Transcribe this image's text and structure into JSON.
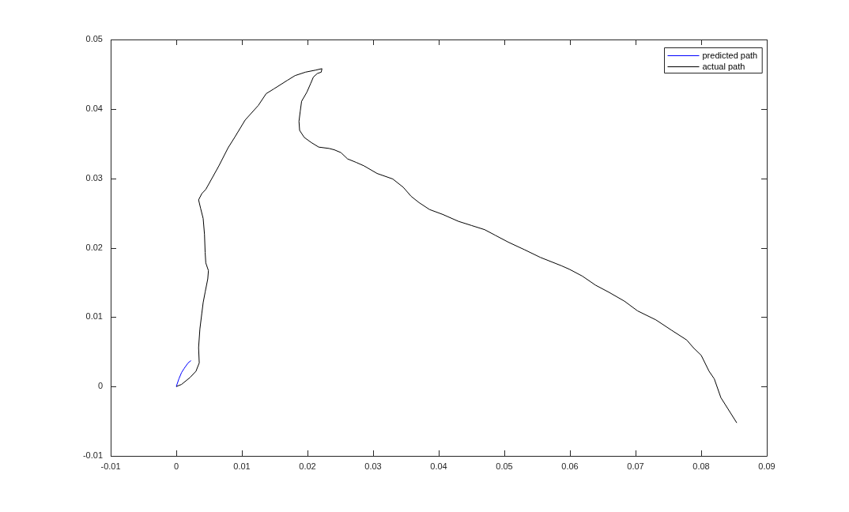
{
  "chart_data": {
    "type": "line",
    "series": [
      {
        "name": "predicted path",
        "color": "#0000ff",
        "x": [
          0,
          0.0004,
          0.0008,
          0.0012,
          0.0018,
          0.0022
        ],
        "values": [
          0,
          0.0011,
          0.002,
          0.0026,
          0.0034,
          0.0037
        ]
      },
      {
        "name": "actual path",
        "color": "#000000",
        "x": [
          0,
          0.0008,
          0.0021,
          0.003,
          0.0035,
          0.0034,
          0.0036,
          0.0039,
          0.0041,
          0.0044,
          0.0048,
          0.0049,
          0.0045,
          0.0044,
          0.0043,
          0.0041,
          0.0037,
          0.0034,
          0.0039,
          0.0045,
          0.0065,
          0.0079,
          0.0089,
          0.0105,
          0.0125,
          0.0137,
          0.0149,
          0.0169,
          0.0181,
          0.0197,
          0.0213,
          0.0222,
          0.0221,
          0.0215,
          0.0209,
          0.0205,
          0.0199,
          0.0191,
          0.0189,
          0.0187,
          0.0188,
          0.0195,
          0.0205,
          0.0217,
          0.0233,
          0.0241,
          0.0251,
          0.0261,
          0.0274,
          0.0286,
          0.0306,
          0.033,
          0.0346,
          0.0358,
          0.037,
          0.0386,
          0.0406,
          0.043,
          0.045,
          0.047,
          0.0486,
          0.0506,
          0.0531,
          0.0555,
          0.0587,
          0.0599,
          0.0619,
          0.0639,
          0.0659,
          0.0683,
          0.0703,
          0.0731,
          0.0755,
          0.0778,
          0.0788,
          0.08,
          0.0812,
          0.082,
          0.083,
          0.0854
        ],
        "values": [
          0,
          0.0003,
          0.0013,
          0.0022,
          0.0034,
          0.0056,
          0.0083,
          0.0106,
          0.0121,
          0.0136,
          0.0155,
          0.0167,
          0.0178,
          0.0193,
          0.0219,
          0.0242,
          0.0257,
          0.0269,
          0.0278,
          0.0284,
          0.0318,
          0.0344,
          0.0359,
          0.0384,
          0.0405,
          0.0422,
          0.0429,
          0.0441,
          0.0448,
          0.0453,
          0.0456,
          0.0458,
          0.0453,
          0.0451,
          0.0446,
          0.0437,
          0.0424,
          0.0411,
          0.0397,
          0.0382,
          0.0369,
          0.0359,
          0.0352,
          0.0345,
          0.0343,
          0.0341,
          0.0337,
          0.0328,
          0.0323,
          0.0318,
          0.0307,
          0.0299,
          0.0287,
          0.0274,
          0.0265,
          0.0255,
          0.0248,
          0.0238,
          0.0232,
          0.0226,
          0.0218,
          0.0208,
          0.0197,
          0.0186,
          0.0174,
          0.0169,
          0.0159,
          0.0146,
          0.0136,
          0.0123,
          0.0109,
          0.0096,
          0.0081,
          0.0067,
          0.0056,
          0.0045,
          0.0022,
          0.0011,
          -0.0016,
          -0.0052
        ]
      }
    ],
    "xlim": [
      -0.01,
      0.09
    ],
    "xticks": [
      -0.01,
      0,
      0.01,
      0.02,
      0.03,
      0.04,
      0.05,
      0.06,
      0.07,
      0.08,
      0.09
    ],
    "ylim": [
      -0.01,
      0.05
    ],
    "yticks": [
      -0.01,
      0,
      0.01,
      0.02,
      0.03,
      0.04,
      0.05
    ],
    "grid": false,
    "legend": "top right",
    "marker": "none",
    "line_style": "solid"
  }
}
